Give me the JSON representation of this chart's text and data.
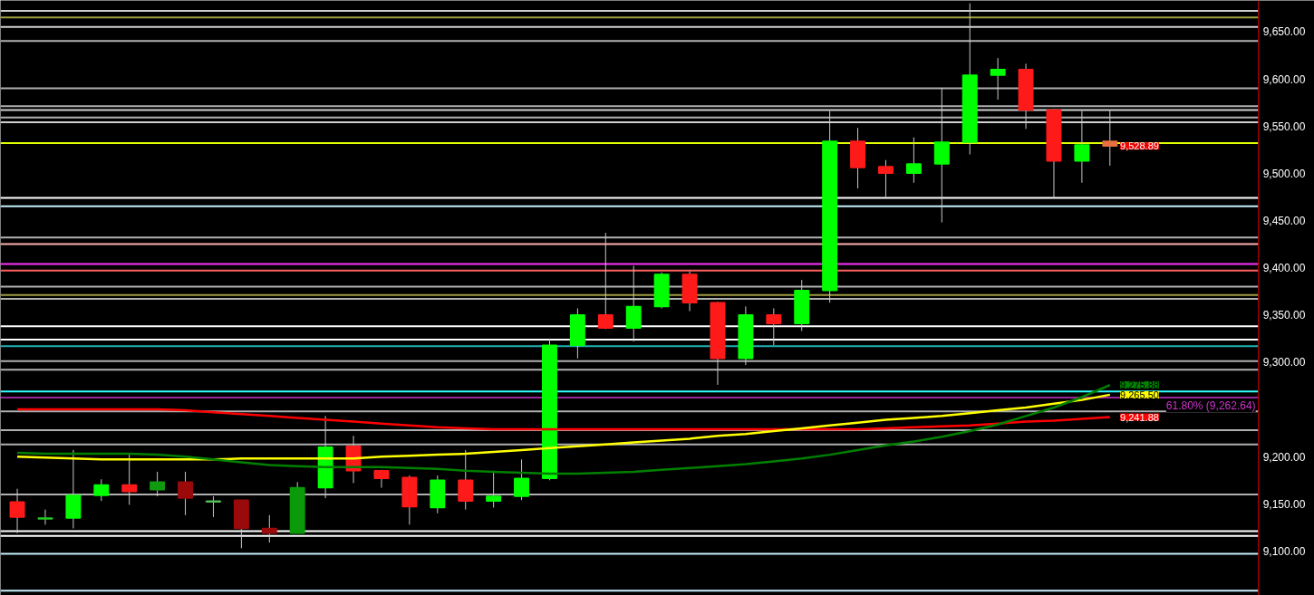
{
  "chart_data": {
    "type": "candlestick",
    "categories": [
      null,
      null,
      null,
      null,
      null,
      null,
      null,
      null,
      null,
      null,
      null,
      null,
      null,
      null,
      null,
      null,
      null,
      null,
      null,
      null,
      null,
      null,
      null,
      null,
      null,
      null,
      null,
      null,
      null,
      null,
      null,
      null,
      null,
      null,
      null,
      null,
      null,
      null,
      null,
      null
    ],
    "ohlc": [
      [
        9152,
        9166,
        9119,
        9136
      ],
      [
        9134,
        9144,
        9128,
        9135
      ],
      [
        9135,
        9207,
        9124,
        9159
      ],
      [
        9159,
        9176,
        9153,
        9170
      ],
      [
        9170,
        9204,
        9149,
        9163
      ],
      [
        9165,
        9184,
        9158,
        9173
      ],
      [
        9173,
        9184,
        9138,
        9156
      ],
      [
        9152,
        9158,
        9136,
        9153
      ],
      [
        9154,
        9154,
        9103,
        9124
      ],
      [
        9124,
        9138,
        9109,
        9119
      ],
      [
        9119,
        9173,
        9119,
        9167
      ],
      [
        9167,
        9243,
        9156,
        9210
      ],
      [
        9211,
        9222,
        9172,
        9185
      ],
      [
        9185,
        9186,
        9167,
        9177
      ],
      [
        9178,
        9180,
        9128,
        9147
      ],
      [
        9146,
        9180,
        9140,
        9175
      ],
      [
        9175,
        9207,
        9144,
        9153
      ],
      [
        9153,
        9185,
        9146,
        9158
      ],
      [
        9158,
        9197,
        9154,
        9177
      ],
      [
        9177,
        9325,
        9175,
        9318
      ],
      [
        9318,
        9357,
        9304,
        9350
      ],
      [
        9350,
        9437,
        9335,
        9336
      ],
      [
        9336,
        9402,
        9322,
        9359
      ],
      [
        9359,
        9395,
        9357,
        9393
      ],
      [
        9393,
        9396,
        9354,
        9363
      ],
      [
        9363,
        9364,
        9276,
        9304
      ],
      [
        9304,
        9359,
        9297,
        9350
      ],
      [
        9350,
        9357,
        9318,
        9341
      ],
      [
        9341,
        9387,
        9333,
        9376
      ],
      [
        9376,
        9566,
        9363,
        9534
      ],
      [
        9534,
        9548,
        9484,
        9506
      ],
      [
        9507,
        9514,
        9475,
        9500
      ],
      [
        9500,
        9538,
        9490,
        9510
      ],
      [
        9510,
        9590,
        9448,
        9533
      ],
      [
        9533,
        9680,
        9520,
        9604
      ],
      [
        9604,
        9622,
        9578,
        9610
      ],
      [
        9610,
        9616,
        9547,
        9567
      ],
      [
        9567,
        9568,
        9474,
        9513
      ],
      [
        9513,
        9566,
        9490,
        9530
      ],
      [
        9534,
        9567,
        9508,
        9528.89
      ]
    ],
    "colors": [
      "#ff1a1a",
      "#22cc22",
      "#00ff00",
      "#00ff00",
      "#ff1a1a",
      "#109a10",
      "#9a0a0a",
      "#55bb55",
      "#9a0a0a",
      "#9a0a0a",
      "#0a9a0a",
      "#00ff00",
      "#ff1a1a",
      "#ff1a1a",
      "#ff1a1a",
      "#00ff00",
      "#ff1a1a",
      "#00ff00",
      "#00ff00",
      "#00ff00",
      "#00ff00",
      "#ff1a1a",
      "#00ff00",
      "#00ff00",
      "#ff1a1a",
      "#ff1a1a",
      "#00ff00",
      "#ff1a1a",
      "#00ff00",
      "#00ff00",
      "#ff1a1a",
      "#ff1a1a",
      "#00ff00",
      "#00ff00",
      "#00ff00",
      "#00ff00",
      "#ff1a1a",
      "#ff1a1a",
      "#00ff00",
      "#e87040"
    ],
    "series": [
      {
        "type": "line",
        "color": "#ff0000",
        "values": [
          9250,
          9250,
          9250,
          9250,
          9250,
          9250,
          9249,
          9247,
          9245,
          9243,
          9241,
          9239,
          9237,
          9235,
          9233,
          9231,
          9230,
          9229,
          9229,
          9229,
          9229,
          9229,
          9229,
          9229,
          9229,
          9229,
          9229,
          9229,
          9229,
          9229,
          9229,
          9230,
          9231,
          9232,
          9233,
          9235,
          9237,
          9238,
          9240,
          9241.88
        ],
        "value_labels": [
          null,
          null,
          null,
          null,
          null,
          null,
          null,
          null,
          null,
          null,
          null,
          null,
          null,
          null,
          null,
          null,
          null,
          null,
          null,
          null,
          null,
          null,
          null,
          null,
          null,
          null,
          null,
          null,
          null,
          null,
          null,
          null,
          null,
          null,
          null,
          null,
          null,
          null,
          null,
          "9,241.88"
        ]
      },
      {
        "type": "line",
        "color": "#ffff00",
        "values": [
          9200,
          9199,
          9198,
          9197,
          9197,
          9197,
          9197,
          9197,
          9198,
          9198,
          9198,
          9198,
          9198,
          9200,
          9201,
          9202,
          9203,
          9205,
          9207,
          9209,
          9211,
          9213,
          9215,
          9217,
          9219,
          9222,
          9224,
          9227,
          9230,
          9233,
          9236,
          9239,
          9241,
          9243,
          9246,
          9249,
          9252,
          9256,
          9260,
          9265.5
        ],
        "value_labels": [
          null,
          null,
          null,
          null,
          null,
          null,
          null,
          null,
          null,
          null,
          null,
          null,
          null,
          null,
          null,
          null,
          null,
          null,
          null,
          null,
          null,
          null,
          null,
          null,
          null,
          null,
          null,
          null,
          null,
          null,
          null,
          null,
          null,
          null,
          null,
          null,
          null,
          null,
          null,
          "9,265.50"
        ]
      },
      {
        "type": "line",
        "color": "#008000",
        "values": [
          9204,
          9203,
          9203,
          9203,
          9203,
          9202,
          9200,
          9197,
          9194,
          9191,
          9190,
          9189,
          9189,
          9189,
          9188,
          9187,
          9185,
          9184,
          9183,
          9182,
          9182,
          9183,
          9184,
          9186,
          9188,
          9190,
          9192,
          9195,
          9198,
          9202,
          9207,
          9212,
          9216,
          9221,
          9227,
          9234,
          9243,
          9252,
          9263,
          9275.88
        ],
        "value_labels": [
          null,
          null,
          null,
          null,
          null,
          null,
          null,
          null,
          null,
          null,
          null,
          null,
          null,
          null,
          null,
          null,
          null,
          null,
          null,
          null,
          null,
          null,
          null,
          null,
          null,
          null,
          null,
          null,
          null,
          null,
          null,
          null,
          null,
          null,
          null,
          null,
          null,
          null,
          null,
          "9,275.88"
        ]
      }
    ],
    "ylim": [
      9053,
      9683
    ],
    "yticks": [
      {
        "value": 9100,
        "label": "9,100.00"
      },
      {
        "value": 9150,
        "label": "9,150.00"
      },
      {
        "value": 9200,
        "label": "9,200.00"
      },
      {
        "value": 9250,
        "label": null
      },
      {
        "value": 9300,
        "label": "9,300.00"
      },
      {
        "value": 9350,
        "label": "9,350.00"
      },
      {
        "value": 9400,
        "label": "9,400.00"
      },
      {
        "value": 9450,
        "label": "9,450.00"
      },
      {
        "value": 9500,
        "label": "9,500.00"
      },
      {
        "value": 9550,
        "label": "9,550.00"
      },
      {
        "value": 9600,
        "label": "9,600.00"
      },
      {
        "value": 9650,
        "label": "9,650.00"
      }
    ],
    "ref_lines": [
      {
        "axis": "y",
        "value": 9672,
        "color": "#d0d0d0"
      },
      {
        "axis": "y",
        "value": 9665,
        "color": "#a0a040"
      },
      {
        "axis": "y",
        "value": 9655,
        "color": "#d0d0d0"
      },
      {
        "axis": "y",
        "value": 9640,
        "color": "#b0b0b0"
      },
      {
        "axis": "y",
        "value": 9590,
        "color": "#b0b0b0"
      },
      {
        "axis": "y",
        "value": 9571,
        "color": "#b0b0b0"
      },
      {
        "axis": "y",
        "value": 9567,
        "color": "#d0d0d0"
      },
      {
        "axis": "y",
        "value": 9559,
        "color": "#b0b0b0"
      },
      {
        "axis": "y",
        "value": 9554,
        "color": "#d0d0d0"
      },
      {
        "axis": "y",
        "value": 9532,
        "color": "#e0ff00"
      },
      {
        "axis": "y",
        "value": 9474,
        "color": "#ffffff"
      },
      {
        "axis": "y",
        "value": 9465,
        "color": "#c8f0ff"
      },
      {
        "axis": "y",
        "value": 9432,
        "color": "#b0b0b0"
      },
      {
        "axis": "y",
        "value": 9425,
        "color": "#ffb0b0"
      },
      {
        "axis": "y",
        "value": 9404,
        "color": "#ff33ff"
      },
      {
        "axis": "y",
        "value": 9397,
        "color": "#ff6060"
      },
      {
        "axis": "y",
        "value": 9380,
        "color": "#b0b0b0"
      },
      {
        "axis": "y",
        "value": 9371,
        "color": "#a09a40"
      },
      {
        "axis": "y",
        "value": 9367,
        "color": "#b0b0b0"
      },
      {
        "axis": "y",
        "value": 9338,
        "color": "#ffffff"
      },
      {
        "axis": "y",
        "value": 9324,
        "color": "#ffffff"
      },
      {
        "axis": "y",
        "value": 9317,
        "color": "#20b0b0"
      },
      {
        "axis": "y",
        "value": 9301,
        "color": "#b0b0b0"
      },
      {
        "axis": "y",
        "value": 9292,
        "color": "#b0b0b0"
      },
      {
        "axis": "y",
        "value": 9269,
        "color": "#33ffff"
      },
      {
        "axis": "y",
        "value": 9262.64,
        "color": "#cc33cc",
        "label": "61.80% (9,262.64)"
      },
      {
        "axis": "y",
        "value": 9248,
        "color": "#b0b0b0"
      },
      {
        "axis": "y",
        "value": 9228,
        "color": "#b0b0b0"
      },
      {
        "axis": "y",
        "value": 9213,
        "color": "#b0b0b0"
      },
      {
        "axis": "y",
        "value": 9160,
        "color": "#b0b0b0"
      },
      {
        "axis": "y",
        "value": 9121,
        "color": "#ffffff"
      },
      {
        "axis": "y",
        "value": 9116,
        "color": "#ffffff"
      },
      {
        "axis": "y",
        "value": 9097,
        "color": "#c8f0ff"
      },
      {
        "axis": "y",
        "value": 9058,
        "color": "#c8f0ff"
      }
    ],
    "value_labels": [
      null,
      null,
      null,
      null,
      null,
      null,
      null,
      null,
      null,
      null,
      null,
      null,
      null,
      null,
      null,
      null,
      null,
      null,
      null,
      null,
      null,
      null,
      null,
      null,
      null,
      null,
      null,
      null,
      null,
      null,
      null,
      null,
      null,
      null,
      null,
      null,
      null,
      null,
      null,
      "9,528.89"
    ]
  }
}
